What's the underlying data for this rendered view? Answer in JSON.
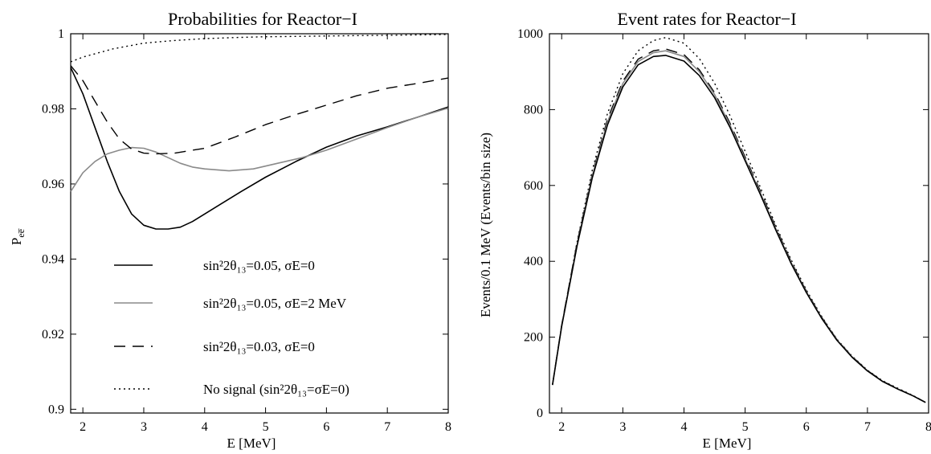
{
  "chart_data": [
    {
      "type": "line",
      "title": "Probabilities for Reactor−I",
      "xlabel": "E [MeV]",
      "ylabel": {
        "base": "P",
        "sub": "ee̅"
      },
      "xlim": [
        1.8,
        8
      ],
      "ylim": [
        0.899,
        1
      ],
      "xticks": [
        2,
        3,
        4,
        5,
        6,
        7,
        8
      ],
      "yticks": [
        0.9,
        0.92,
        0.94,
        0.96,
        0.98,
        1
      ],
      "ytick_labels": [
        "0.9",
        "0.92",
        "0.94",
        "0.96",
        "0.98",
        "1"
      ],
      "grid": false,
      "legend_position": "bottom-center",
      "series": [
        {
          "legend": "sin²2θ₁₃=0.05, σE=0",
          "style": "solid",
          "color": "#000000",
          "points": [
            [
              1.8,
              0.991
            ],
            [
              2.0,
              0.984
            ],
            [
              2.2,
              0.975
            ],
            [
              2.4,
              0.966
            ],
            [
              2.6,
              0.958
            ],
            [
              2.8,
              0.952
            ],
            [
              3.0,
              0.949
            ],
            [
              3.2,
              0.948
            ],
            [
              3.4,
              0.948
            ],
            [
              3.6,
              0.9485
            ],
            [
              3.8,
              0.95
            ],
            [
              4.0,
              0.952
            ],
            [
              4.3,
              0.955
            ],
            [
              4.6,
              0.958
            ],
            [
              5.0,
              0.9618
            ],
            [
              5.5,
              0.966
            ],
            [
              6.0,
              0.9698
            ],
            [
              6.5,
              0.9728
            ],
            [
              7.0,
              0.9752
            ],
            [
              7.5,
              0.9778
            ],
            [
              8.0,
              0.9805
            ]
          ]
        },
        {
          "legend": "sin²2θ₁₃=0.05, σE=2 MeV",
          "style": "solid",
          "color": "#8a8a8a",
          "points": [
            [
              1.8,
              0.958
            ],
            [
              2.0,
              0.963
            ],
            [
              2.2,
              0.966
            ],
            [
              2.4,
              0.968
            ],
            [
              2.6,
              0.969
            ],
            [
              2.8,
              0.9697
            ],
            [
              3.0,
              0.9695
            ],
            [
              3.2,
              0.9685
            ],
            [
              3.4,
              0.967
            ],
            [
              3.6,
              0.9655
            ],
            [
              3.8,
              0.9645
            ],
            [
              4.0,
              0.964
            ],
            [
              4.4,
              0.9635
            ],
            [
              4.8,
              0.964
            ],
            [
              5.2,
              0.9655
            ],
            [
              5.6,
              0.967
            ],
            [
              6.0,
              0.969
            ],
            [
              6.5,
              0.972
            ],
            [
              7.0,
              0.975
            ],
            [
              7.5,
              0.9778
            ],
            [
              8.0,
              0.9802
            ]
          ]
        },
        {
          "legend": "sin²2θ₁₃=0.03, σE=0",
          "style": "dashed",
          "color": "#000000",
          "points": [
            [
              1.8,
              0.9915
            ],
            [
              2.0,
              0.9875
            ],
            [
              2.2,
              0.982
            ],
            [
              2.4,
              0.9765
            ],
            [
              2.6,
              0.972
            ],
            [
              2.8,
              0.9693
            ],
            [
              3.0,
              0.9682
            ],
            [
              3.2,
              0.968
            ],
            [
              3.5,
              0.9682
            ],
            [
              4.0,
              0.9695
            ],
            [
              4.5,
              0.9725
            ],
            [
              5.0,
              0.9758
            ],
            [
              5.5,
              0.9785
            ],
            [
              6.0,
              0.981
            ],
            [
              6.5,
              0.9835
            ],
            [
              7.0,
              0.9855
            ],
            [
              7.5,
              0.9868
            ],
            [
              8.0,
              0.9882
            ]
          ]
        },
        {
          "legend": "No signal (sin²2θ₁₃=σE=0)",
          "style": "dotted",
          "color": "#000000",
          "points": [
            [
              1.8,
              0.9925
            ],
            [
              2.0,
              0.9938
            ],
            [
              2.5,
              0.996
            ],
            [
              3.0,
              0.9975
            ],
            [
              3.5,
              0.9982
            ],
            [
              4.0,
              0.9987
            ],
            [
              4.5,
              0.999
            ],
            [
              5.0,
              0.9992
            ],
            [
              5.5,
              0.9993
            ],
            [
              6.0,
              0.9994
            ],
            [
              6.5,
              0.9995
            ],
            [
              7.0,
              0.9996
            ],
            [
              7.5,
              0.9997
            ],
            [
              8.0,
              0.9998
            ]
          ]
        }
      ]
    },
    {
      "type": "line",
      "title": "Event rates for Reactor−I",
      "xlabel": "E [MeV]",
      "ylabel": "Events/0.1 MeV (Events/bin size)",
      "xlim": [
        1.8,
        8
      ],
      "ylim": [
        0,
        1000
      ],
      "xticks": [
        2,
        3,
        4,
        5,
        6,
        7,
        8
      ],
      "yticks": [
        0,
        200,
        400,
        600,
        800,
        1000
      ],
      "ytick_labels": [
        "0",
        "200",
        "400",
        "600",
        "800",
        "1000"
      ],
      "grid": false,
      "series": [
        {
          "style": "dotted",
          "color": "#000000",
          "points": [
            [
              1.85,
              75
            ],
            [
              2.0,
              230
            ],
            [
              2.25,
              450
            ],
            [
              2.5,
              640
            ],
            [
              2.75,
              790
            ],
            [
              3.0,
              895
            ],
            [
              3.25,
              955
            ],
            [
              3.5,
              982
            ],
            [
              3.7,
              990
            ],
            [
              4.0,
              975
            ],
            [
              4.25,
              935
            ],
            [
              4.5,
              870
            ],
            [
              4.75,
              785
            ],
            [
              5.0,
              690
            ],
            [
              5.25,
              595
            ],
            [
              5.5,
              495
            ],
            [
              5.75,
              405
            ],
            [
              6.0,
              325
            ],
            [
              6.25,
              255
            ],
            [
              6.5,
              195
            ],
            [
              6.75,
              150
            ],
            [
              7.0,
              113
            ],
            [
              7.25,
              85
            ],
            [
              7.5,
              65
            ],
            [
              7.75,
              46
            ],
            [
              7.95,
              28
            ]
          ]
        },
        {
          "style": "dashed",
          "color": "#000000",
          "points": [
            [
              1.85,
              75
            ],
            [
              2.0,
              232
            ],
            [
              2.25,
              448
            ],
            [
              2.5,
              630
            ],
            [
              2.75,
              775
            ],
            [
              3.0,
              875
            ],
            [
              3.25,
              933
            ],
            [
              3.5,
              955
            ],
            [
              3.7,
              960
            ],
            [
              4.0,
              945
            ],
            [
              4.25,
              905
            ],
            [
              4.5,
              845
            ],
            [
              4.75,
              765
            ],
            [
              5.0,
              675
            ],
            [
              5.25,
              585
            ],
            [
              5.5,
              490
            ],
            [
              5.75,
              400
            ],
            [
              6.0,
              322
            ],
            [
              6.25,
              253
            ],
            [
              6.5,
              194
            ],
            [
              6.75,
              149
            ],
            [
              7.0,
              112
            ],
            [
              7.25,
              84
            ],
            [
              7.5,
              64
            ],
            [
              7.75,
              45
            ],
            [
              7.95,
              28
            ]
          ]
        },
        {
          "style": "solid",
          "color": "#8a8a8a",
          "points": [
            [
              1.85,
              74
            ],
            [
              2.0,
              229
            ],
            [
              2.25,
              442
            ],
            [
              2.5,
              625
            ],
            [
              2.75,
              768
            ],
            [
              3.0,
              869
            ],
            [
              3.25,
              927
            ],
            [
              3.5,
              950
            ],
            [
              3.7,
              955
            ],
            [
              4.0,
              940
            ],
            [
              4.25,
              900
            ],
            [
              4.5,
              840
            ],
            [
              4.75,
              760
            ],
            [
              5.0,
              670
            ],
            [
              5.25,
              580
            ],
            [
              5.5,
              486
            ],
            [
              5.75,
              397
            ],
            [
              6.0,
              320
            ],
            [
              6.25,
              251
            ],
            [
              6.5,
              193
            ],
            [
              6.75,
              148
            ],
            [
              7.0,
              111
            ],
            [
              7.25,
              83
            ],
            [
              7.5,
              63
            ],
            [
              7.75,
              45
            ],
            [
              7.95,
              28
            ]
          ]
        },
        {
          "style": "solid",
          "color": "#000000",
          "points": [
            [
              1.85,
              74
            ],
            [
              2.0,
              228
            ],
            [
              2.25,
              440
            ],
            [
              2.5,
              620
            ],
            [
              2.75,
              760
            ],
            [
              3.0,
              860
            ],
            [
              3.25,
              918
            ],
            [
              3.5,
              940
            ],
            [
              3.7,
              943
            ],
            [
              4.0,
              928
            ],
            [
              4.25,
              890
            ],
            [
              4.5,
              832
            ],
            [
              4.75,
              754
            ],
            [
              5.0,
              665
            ],
            [
              5.25,
              576
            ],
            [
              5.5,
              483
            ],
            [
              5.75,
              395
            ],
            [
              6.0,
              318
            ],
            [
              6.25,
              250
            ],
            [
              6.5,
              192
            ],
            [
              6.75,
              147
            ],
            [
              7.0,
              111
            ],
            [
              7.25,
              83
            ],
            [
              7.5,
              63
            ],
            [
              7.75,
              45
            ],
            [
              7.95,
              28
            ]
          ]
        }
      ]
    }
  ]
}
